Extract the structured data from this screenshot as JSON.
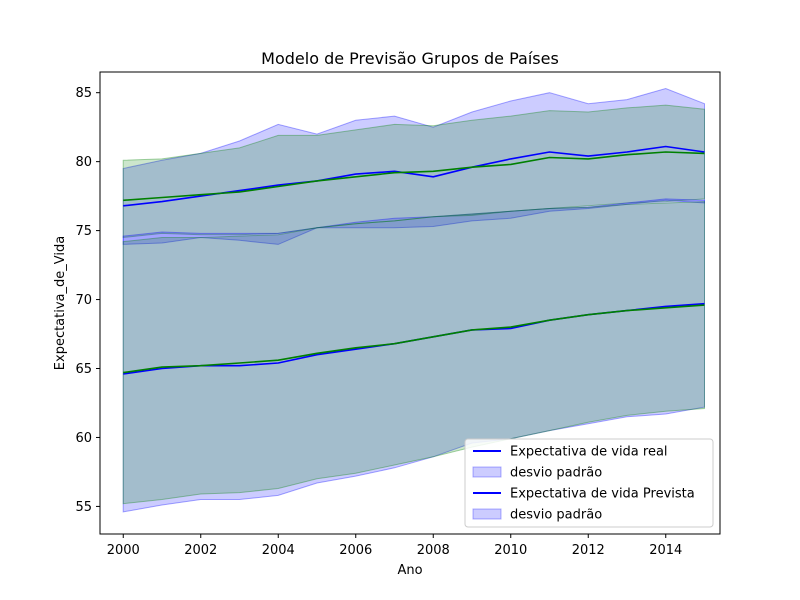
{
  "chart_data": {
    "type": "line",
    "title": "Modelo de Previsão Grupos de Países",
    "xlabel": "Ano",
    "ylabel": "Expectativa_de_Vida",
    "xlim": [
      1999.4,
      2015.4
    ],
    "ylim": [
      53,
      86.5
    ],
    "xticks": [
      2000,
      2002,
      2004,
      2006,
      2008,
      2010,
      2012,
      2014
    ],
    "yticks": [
      55,
      60,
      65,
      70,
      75,
      80,
      85
    ],
    "grid": false,
    "legend_position": "lower-right",
    "x": [
      2000,
      2001,
      2002,
      2003,
      2004,
      2005,
      2006,
      2007,
      2008,
      2009,
      2010,
      2011,
      2012,
      2013,
      2014,
      2015
    ],
    "series": [
      {
        "name": "Expectativa de vida real",
        "kind": "line",
        "color": "#0000ff",
        "group": "upper",
        "values": [
          76.8,
          77.1,
          77.5,
          77.9,
          78.3,
          78.6,
          79.1,
          79.3,
          78.9,
          79.6,
          80.2,
          80.7,
          80.4,
          80.7,
          81.1,
          80.7
        ]
      },
      {
        "name": "",
        "kind": "line",
        "color": "#008000",
        "group": "upper",
        "values": [
          77.2,
          77.4,
          77.6,
          77.8,
          78.2,
          78.6,
          78.9,
          79.2,
          79.3,
          79.6,
          79.8,
          80.3,
          80.2,
          80.5,
          80.7,
          80.6
        ]
      },
      {
        "name": "Expectativa de vida Prevista",
        "kind": "line",
        "color": "#0000ff",
        "group": "lower",
        "values": [
          64.6,
          65.0,
          65.2,
          65.2,
          65.4,
          66.0,
          66.4,
          66.8,
          67.3,
          67.8,
          67.9,
          68.5,
          68.9,
          69.2,
          69.5,
          69.7
        ]
      },
      {
        "name": "",
        "kind": "line",
        "color": "#008000",
        "group": "lower",
        "values": [
          64.7,
          65.1,
          65.2,
          65.4,
          65.6,
          66.1,
          66.5,
          66.8,
          67.3,
          67.8,
          68.0,
          68.5,
          68.9,
          69.2,
          69.4,
          69.6
        ]
      }
    ],
    "bands": [
      {
        "name": "desvio padrão",
        "group": "upper",
        "fill": "#0000ff",
        "opacity": 0.2,
        "lower": [
          74.0,
          74.1,
          74.5,
          74.3,
          74.0,
          75.2,
          75.2,
          75.2,
          75.3,
          75.7,
          75.9,
          76.4,
          76.6,
          76.9,
          77.2,
          77.0
        ],
        "upper": [
          79.5,
          80.1,
          80.6,
          81.5,
          82.7,
          82.0,
          83.0,
          83.3,
          82.5,
          83.6,
          84.4,
          85.0,
          84.2,
          84.5,
          85.3,
          84.2
        ]
      },
      {
        "name": "",
        "group": "upper",
        "fill": "#008000",
        "opacity": 0.2,
        "lower": [
          74.5,
          74.8,
          74.7,
          74.7,
          74.8,
          75.2,
          75.5,
          75.7,
          76.0,
          76.1,
          76.4,
          76.6,
          76.8,
          77.0,
          77.1,
          77.3
        ],
        "upper": [
          80.1,
          80.2,
          80.6,
          81.0,
          81.9,
          81.9,
          82.3,
          82.7,
          82.6,
          83.0,
          83.3,
          83.7,
          83.6,
          83.9,
          84.1,
          83.8
        ]
      },
      {
        "name": "desvio padrão",
        "group": "lower",
        "fill": "#0000ff",
        "opacity": 0.2,
        "lower": [
          54.6,
          55.1,
          55.5,
          55.5,
          55.8,
          56.7,
          57.2,
          57.8,
          58.6,
          59.6,
          59.9,
          60.5,
          61.0,
          61.5,
          61.7,
          62.2
        ],
        "upper": [
          74.6,
          74.9,
          74.8,
          74.8,
          74.8,
          75.2,
          75.6,
          75.9,
          76.0,
          76.2,
          76.4,
          76.6,
          76.7,
          77.0,
          77.3,
          77.2
        ]
      },
      {
        "name": "",
        "group": "lower",
        "fill": "#008000",
        "opacity": 0.2,
        "lower": [
          55.2,
          55.5,
          55.9,
          56.0,
          56.3,
          57.0,
          57.4,
          58.0,
          58.6,
          59.3,
          59.9,
          60.5,
          61.1,
          61.6,
          61.9,
          62.1
        ],
        "upper": [
          74.2,
          74.5,
          74.5,
          74.6,
          74.7,
          75.2,
          75.5,
          75.7,
          76.0,
          76.2,
          76.4,
          76.6,
          76.7,
          76.9,
          77.0,
          77.1
        ]
      }
    ],
    "legend": [
      {
        "label": "Expectativa de vida real",
        "kind": "line",
        "color": "#0000ff"
      },
      {
        "label": "desvio padrão",
        "kind": "patch",
        "color": "#0000ff"
      },
      {
        "label": "Expectativa de vida Prevista",
        "kind": "line",
        "color": "#0000ff"
      },
      {
        "label": "desvio padrão",
        "kind": "patch",
        "color": "#0000ff"
      }
    ]
  }
}
